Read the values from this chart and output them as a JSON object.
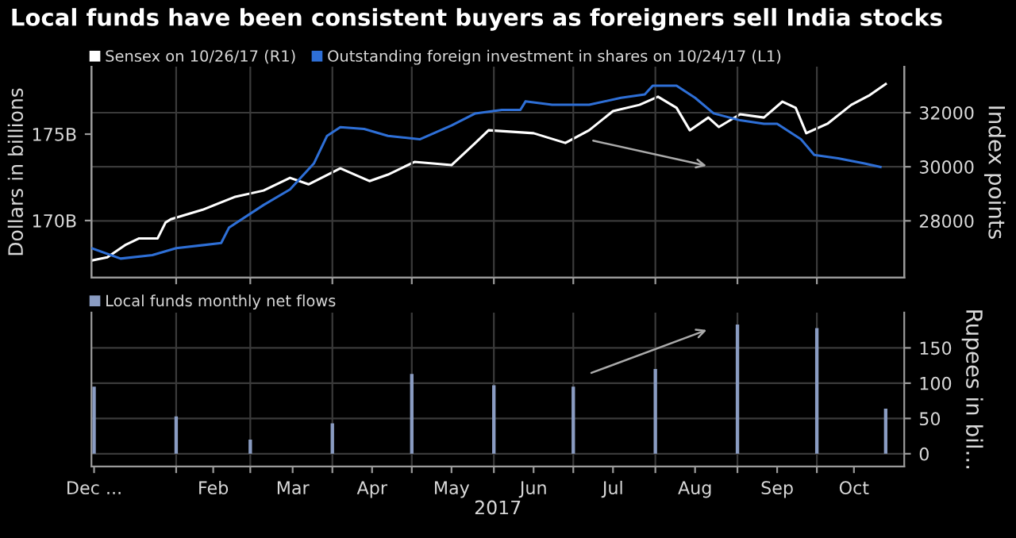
{
  "chart_data": [
    {
      "type": "line",
      "title": "Local funds have been consistent buyers as foreigners sell India stocks",
      "ylabel": "Dollars in billions",
      "y2label": "Index points",
      "legend": "top left",
      "grid": true,
      "tick_labels": "y",
      "xlim": [
        "2016-12-30",
        "2017-11-02"
      ],
      "xticks": [
        {
          "value": "2017-01-31",
          "label": null
        },
        {
          "value": "2017-02-28",
          "label": null
        },
        {
          "value": "2017-03-31",
          "label": null
        },
        {
          "value": "2017-04-30",
          "label": null
        },
        {
          "value": "2017-05-31",
          "label": null
        },
        {
          "value": "2017-06-30",
          "label": null
        },
        {
          "value": "2017-07-31",
          "label": null
        },
        {
          "value": "2017-08-31",
          "label": null
        },
        {
          "value": "2017-09-30",
          "label": null
        }
      ],
      "ylim": [
        166.7,
        178.9
      ],
      "yticks": [
        {
          "value": 170,
          "label": "170B"
        },
        {
          "value": 175,
          "label": "175B"
        }
      ],
      "y2lim": [
        25900,
        33700
      ],
      "y2ticks": [
        28000,
        30000,
        32000
      ],
      "series": [
        {
          "name": "Sensex on 10/26/17 (R1)",
          "color": "#ffffff",
          "axis": "y2",
          "x": [
            "2016-12-30",
            "2017-01-05",
            "2017-01-12",
            "2017-01-17",
            "2017-01-24",
            "2017-01-27",
            "2017-01-29",
            "2017-02-10",
            "2017-02-22",
            "2017-03-05",
            "2017-03-15",
            "2017-03-22",
            "2017-04-03",
            "2017-04-14",
            "2017-04-21",
            "2017-05-01",
            "2017-05-15",
            "2017-05-24",
            "2017-05-29",
            "2017-06-15",
            "2017-06-27",
            "2017-07-06",
            "2017-07-15",
            "2017-07-25",
            "2017-08-01",
            "2017-08-08",
            "2017-08-13",
            "2017-08-20",
            "2017-08-24",
            "2017-09-01",
            "2017-09-10",
            "2017-09-17",
            "2017-09-22",
            "2017-09-26",
            "2017-10-04",
            "2017-10-13",
            "2017-10-20",
            "2017-10-26"
          ],
          "values": [
            26530,
            26650,
            27120,
            27350,
            27350,
            27940,
            28060,
            28410,
            28880,
            29120,
            29590,
            29350,
            29940,
            29470,
            29710,
            30180,
            30060,
            30880,
            31350,
            31240,
            30880,
            31350,
            32060,
            32290,
            32590,
            32180,
            31350,
            31820,
            31470,
            31940,
            31820,
            32410,
            32180,
            31240,
            31590,
            32290,
            32650,
            33060
          ]
        },
        {
          "name": "Outstanding foreign investment in shares on 10/24/17 (L1)",
          "color": "#2e6fd6",
          "x": [
            "2016-12-30",
            "2017-01-10",
            "2017-01-22",
            "2017-01-31",
            "2017-02-17",
            "2017-02-20",
            "2017-03-05",
            "2017-03-15",
            "2017-03-24",
            "2017-03-29",
            "2017-04-03",
            "2017-04-12",
            "2017-04-21",
            "2017-05-03",
            "2017-05-15",
            "2017-05-24",
            "2017-06-03",
            "2017-06-10",
            "2017-06-12",
            "2017-06-22",
            "2017-07-06",
            "2017-07-18",
            "2017-07-27",
            "2017-07-30",
            "2017-08-08",
            "2017-08-15",
            "2017-08-22",
            "2017-09-01",
            "2017-09-10",
            "2017-09-15",
            "2017-09-24",
            "2017-09-29",
            "2017-10-08",
            "2017-10-18",
            "2017-10-24"
          ],
          "values": [
            168.4,
            167.8,
            168.0,
            168.4,
            168.7,
            169.6,
            170.9,
            171.8,
            173.3,
            174.9,
            175.4,
            175.3,
            174.9,
            174.7,
            175.5,
            176.2,
            176.4,
            176.4,
            176.9,
            176.7,
            176.7,
            177.1,
            177.3,
            177.8,
            177.8,
            177.1,
            176.2,
            175.8,
            175.6,
            175.6,
            174.7,
            173.8,
            173.6,
            173.3,
            173.1
          ]
        }
      ]
    },
    {
      "type": "bar",
      "xlabel": "2017",
      "ylabel": "Rupees in bil...",
      "legend": "top left",
      "grid": true,
      "xlim": [
        "2016-12-30",
        "2017-11-02"
      ],
      "xticks": [
        {
          "value": "2016-12-31",
          "label": "Dec ..."
        },
        {
          "value": "2017-01-31",
          "label": null
        },
        {
          "value": "2017-02-14",
          "label": "Feb"
        },
        {
          "value": "2017-02-28",
          "label": null
        },
        {
          "value": "2017-03-16",
          "label": "Mar"
        },
        {
          "value": "2017-03-31",
          "label": null
        },
        {
          "value": "2017-04-15",
          "label": "Apr"
        },
        {
          "value": "2017-04-30",
          "label": null
        },
        {
          "value": "2017-05-15",
          "label": "May"
        },
        {
          "value": "2017-05-31",
          "label": null
        },
        {
          "value": "2017-06-15",
          "label": "Jun"
        },
        {
          "value": "2017-06-30",
          "label": null
        },
        {
          "value": "2017-07-15",
          "label": "Jul"
        },
        {
          "value": "2017-07-31",
          "label": null
        },
        {
          "value": "2017-08-15",
          "label": "Aug"
        },
        {
          "value": "2017-08-31",
          "label": null
        },
        {
          "value": "2017-09-15",
          "label": "Sep"
        },
        {
          "value": "2017-09-30",
          "label": null
        },
        {
          "value": "2017-10-14",
          "label": "Oct"
        }
      ],
      "ylim": [
        -18,
        200
      ],
      "yticks": [
        0,
        50,
        100,
        150
      ],
      "series": [
        {
          "name": "Local funds monthly net flows",
          "color": "#8a9cc2",
          "x": [
            "2016-12-31",
            "2017-01-31",
            "2017-02-28",
            "2017-03-31",
            "2017-04-30",
            "2017-05-31",
            "2017-06-30",
            "2017-07-31",
            "2017-08-31",
            "2017-09-30",
            "2017-10-26"
          ],
          "values": [
            95,
            53,
            20,
            43,
            113,
            97,
            95,
            120,
            183,
            178,
            64
          ]
        }
      ]
    }
  ]
}
